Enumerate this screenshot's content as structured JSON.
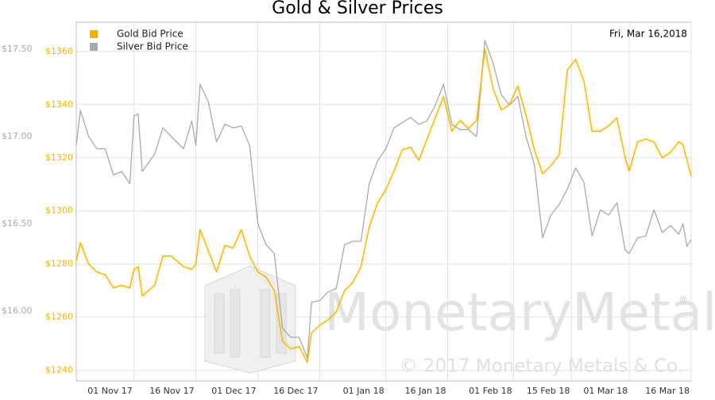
{
  "chart_data": {
    "type": "line",
    "title": "Gold & Silver Prices",
    "date_label": "Fri, Mar 16,2018",
    "watermark": {
      "brand": "MonetaryMetals",
      "mark": "®",
      "copyright": "© 2017 Monetary Metals & Co."
    },
    "grid": true,
    "legend": "upper left",
    "x": [
      "2017-10-18",
      "2017-10-19",
      "2017-10-21",
      "2017-10-23",
      "2017-10-25",
      "2017-10-27",
      "2017-10-29",
      "2017-10-31",
      "2017-11-01",
      "2017-11-02",
      "2017-11-03",
      "2017-11-06",
      "2017-11-08",
      "2017-11-10",
      "2017-11-13",
      "2017-11-15",
      "2017-11-16",
      "2017-11-17",
      "2017-11-19",
      "2017-11-21",
      "2017-11-23",
      "2017-11-25",
      "2017-11-27",
      "2017-11-29",
      "2017-12-01",
      "2017-12-03",
      "2017-12-05",
      "2017-12-07",
      "2017-12-09",
      "2017-12-11",
      "2017-12-13",
      "2017-12-14",
      "2017-12-16",
      "2017-12-18",
      "2017-12-20",
      "2017-12-22",
      "2017-12-24",
      "2017-12-26",
      "2017-12-28",
      "2017-12-30",
      "2018-01-01",
      "2018-01-03",
      "2018-01-05",
      "2018-01-07",
      "2018-01-09",
      "2018-01-11",
      "2018-01-13",
      "2018-01-15",
      "2018-01-17",
      "2018-01-19",
      "2018-01-21",
      "2018-01-23",
      "2018-01-25",
      "2018-01-27",
      "2018-01-29",
      "2018-01-31",
      "2018-02-02",
      "2018-02-04",
      "2018-02-06",
      "2018-02-08",
      "2018-02-10",
      "2018-02-12",
      "2018-02-14",
      "2018-02-16",
      "2018-02-18",
      "2018-02-20",
      "2018-02-22",
      "2018-02-24",
      "2018-02-26",
      "2018-02-28",
      "2018-03-01",
      "2018-03-03",
      "2018-03-05",
      "2018-03-07",
      "2018-03-09",
      "2018-03-11",
      "2018-03-13",
      "2018-03-14",
      "2018-03-15",
      "2018-03-16"
    ],
    "xlim": [
      "2017-10-18",
      "2018-03-16"
    ],
    "xticks": [
      {
        "value": "2017-11-01",
        "label": "01 Nov 17"
      },
      {
        "value": "2017-11-16",
        "label": "16 Nov 17"
      },
      {
        "value": "2017-12-01",
        "label": "01 Dec 17"
      },
      {
        "value": "2017-12-16",
        "label": "16 Dec 17"
      },
      {
        "value": "2018-01-01",
        "label": "01 Jan 18"
      },
      {
        "value": "2018-01-16",
        "label": "16 Jan 18"
      },
      {
        "value": "2018-02-01",
        "label": "01 Feb 18"
      },
      {
        "value": "2018-02-15",
        "label": "15 Feb 18"
      },
      {
        "value": "2018-03-01",
        "label": "01 Mar 18"
      },
      {
        "value": "2018-03-16",
        "label": "16 Mar 18"
      }
    ],
    "ylim": [
      1236,
      1371
    ],
    "yticks": [
      {
        "value": 1240,
        "label": "$1240"
      },
      {
        "value": 1260,
        "label": "$1260"
      },
      {
        "value": 1280,
        "label": "$1280"
      },
      {
        "value": 1300,
        "label": "$1300"
      },
      {
        "value": 1320,
        "label": "$1320"
      },
      {
        "value": 1340,
        "label": "$1340"
      },
      {
        "value": 1360,
        "label": "$1360"
      }
    ],
    "y2lim": [
      15.6,
      17.655
    ],
    "y2ticks": [
      {
        "value": 16,
        "label": "$16.00"
      },
      {
        "value": 16.5,
        "label": "$16.50"
      },
      {
        "value": 17,
        "label": "$17.00"
      },
      {
        "value": 17.5,
        "label": "$17.50"
      }
    ],
    "series": [
      {
        "name": "Gold Bid Price",
        "color": "#f0b400",
        "values": [
          1281,
          1288,
          1280,
          1277,
          1276,
          1271,
          1272,
          1271,
          1278,
          1279,
          1268,
          1272,
          1283,
          1283,
          1279,
          1278,
          1280,
          1293,
          1285,
          1277,
          1287,
          1286,
          1293,
          1283,
          1277,
          1275,
          1270,
          1251,
          1248,
          1249,
          1243,
          1254,
          1257,
          1259,
          1262,
          1270,
          1273,
          1279,
          1294,
          1303,
          1308,
          1315,
          1323,
          1324,
          1319,
          1327,
          1335,
          1343,
          1330,
          1334,
          1331,
          1334,
          1361,
          1346,
          1338,
          1340,
          1347,
          1336,
          1323,
          1314,
          1317,
          1321,
          1353,
          1357,
          1349,
          1330,
          1330,
          1332,
          1335,
          1320,
          1315,
          1326,
          1327,
          1326,
          1320,
          1322,
          1326,
          1325,
          1319,
          1313
        ]
      },
      {
        "name": "Silver Bid Price",
        "color": "#aaaaaa",
        "axis": "y2",
        "values": [
          16.95,
          17.15,
          17.0,
          16.93,
          16.93,
          16.78,
          16.8,
          16.73,
          17.12,
          17.13,
          16.8,
          16.9,
          17.05,
          17.0,
          16.93,
          17.09,
          16.95,
          17.3,
          17.2,
          16.97,
          17.07,
          17.05,
          17.06,
          16.95,
          16.5,
          16.38,
          16.33,
          15.9,
          15.85,
          15.85,
          15.73,
          16.05,
          16.06,
          16.11,
          16.13,
          16.38,
          16.4,
          16.4,
          16.73,
          16.86,
          16.93,
          17.05,
          17.08,
          17.11,
          17.07,
          17.09,
          17.18,
          17.3,
          17.07,
          17.04,
          17.04,
          17.0,
          17.55,
          17.42,
          17.24,
          17.18,
          17.23,
          17.0,
          16.84,
          16.42,
          16.55,
          16.61,
          16.7,
          16.82,
          16.74,
          16.43,
          16.58,
          16.55,
          16.62,
          16.35,
          16.33,
          16.42,
          16.43,
          16.58,
          16.45,
          16.49,
          16.44,
          16.5,
          16.37,
          16.41
        ]
      }
    ]
  }
}
